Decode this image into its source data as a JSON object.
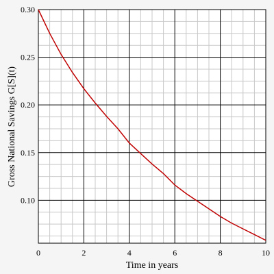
{
  "chart_data": {
    "type": "line",
    "xlabel": "Time in years",
    "ylabel": "Gross National Savings G[S](t)",
    "xlim": [
      0,
      10
    ],
    "ylim": [
      0.055,
      0.3
    ],
    "x_ticks": [
      0,
      2,
      4,
      6,
      8,
      10
    ],
    "x_tick_labels": [
      "0",
      "2",
      "4",
      "6",
      "8",
      "10"
    ],
    "y_ticks": [
      0.1,
      0.15,
      0.2,
      0.25,
      0.3
    ],
    "y_tick_labels": [
      "0.10",
      "0.15",
      "0.20",
      "0.25",
      "0.30"
    ],
    "grid": true,
    "colors": {
      "line": "#c00000",
      "major_grid": "#000000",
      "minor_grid": "#c8c8c8",
      "background": "#f5f5f5"
    },
    "series": [
      {
        "x": [
          0,
          0.5,
          1,
          1.5,
          2,
          2.5,
          3,
          3.5,
          4,
          4.5,
          5,
          5.5,
          6,
          6.5,
          7,
          7.5,
          8,
          8.5,
          9,
          9.5,
          10
        ],
        "y": [
          0.3,
          0.275,
          0.253,
          0.234,
          0.217,
          0.202,
          0.188,
          0.175,
          0.16,
          0.149,
          0.138,
          0.128,
          0.116,
          0.107,
          0.099,
          0.091,
          0.083,
          0.076,
          0.07,
          0.064,
          0.058
        ]
      }
    ]
  }
}
